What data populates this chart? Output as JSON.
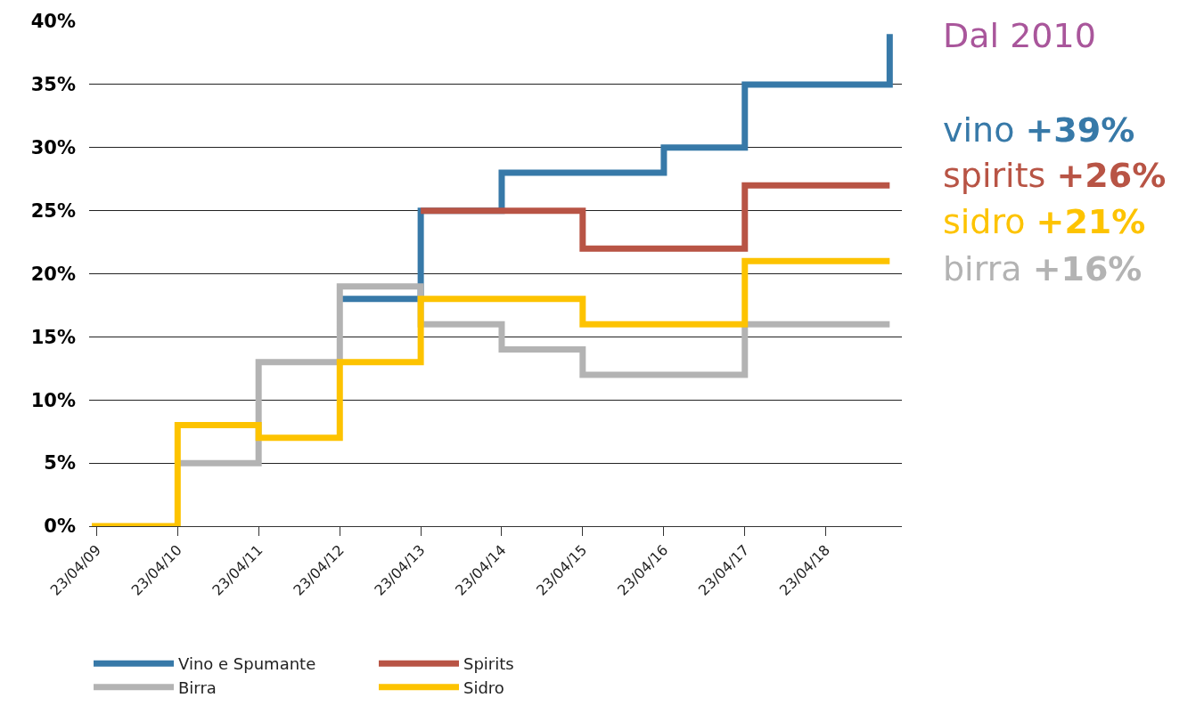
{
  "chart_data": {
    "type": "step",
    "x": [
      "2009-04-01",
      "2010-04-23",
      "2011-04-23",
      "2012-04-23",
      "2013-04-23",
      "2014-04-23",
      "2015-04-23",
      "2016-04-23",
      "2017-04-23",
      "2019-02-05"
    ],
    "series": [
      {
        "name": "Vino e Spumante",
        "color": "#3779a8",
        "values": [
          null,
          null,
          null,
          18,
          25,
          28,
          28,
          30,
          35,
          39
        ]
      },
      {
        "name": "Spirits",
        "color": "#b85445",
        "values": [
          null,
          null,
          null,
          null,
          25,
          25,
          22,
          22,
          27,
          27
        ]
      },
      {
        "name": "Birra",
        "color": "#b3b3b3",
        "values": [
          null,
          5,
          13,
          19,
          16,
          14,
          12,
          12,
          16,
          16
        ]
      },
      {
        "name": "Sidro",
        "color": "#fdc300",
        "values": [
          0,
          8,
          7,
          13,
          18,
          18,
          16,
          16,
          21,
          21
        ]
      }
    ],
    "xlim": [
      "2009-03-20",
      "2019-04-01"
    ],
    "xticks": [
      {
        "value": "2009-04-23",
        "label": "23/04/09"
      },
      {
        "value": "2010-04-23",
        "label": "23/04/10"
      },
      {
        "value": "2011-04-23",
        "label": "23/04/11"
      },
      {
        "value": "2012-04-23",
        "label": "23/04/12"
      },
      {
        "value": "2013-04-23",
        "label": "23/04/13"
      },
      {
        "value": "2014-04-23",
        "label": "23/04/14"
      },
      {
        "value": "2015-04-23",
        "label": "23/04/15"
      },
      {
        "value": "2016-04-23",
        "label": "23/04/16"
      },
      {
        "value": "2017-04-23",
        "label": "23/04/17"
      },
      {
        "value": "2018-04-23",
        "label": "23/04/18"
      }
    ],
    "ylim": [
      0,
      40
    ],
    "yticks": [
      {
        "value": 0,
        "label": "0%"
      },
      {
        "value": 5,
        "label": "5%"
      },
      {
        "value": 10,
        "label": "10%"
      },
      {
        "value": 15,
        "label": "15%"
      },
      {
        "value": 20,
        "label": "20%"
      },
      {
        "value": 25,
        "label": "25%"
      },
      {
        "value": 30,
        "label": "30%"
      },
      {
        "value": 35,
        "label": "35%"
      },
      {
        "value": 40,
        "label": "40%"
      }
    ],
    "grid": "y",
    "legend": "bottom",
    "marker": "none",
    "line_style": "solid",
    "annotations": [
      "Dal 2010",
      "vino +39%",
      "spirits +26%",
      "sidro +21%",
      "birra +16%"
    ]
  }
}
